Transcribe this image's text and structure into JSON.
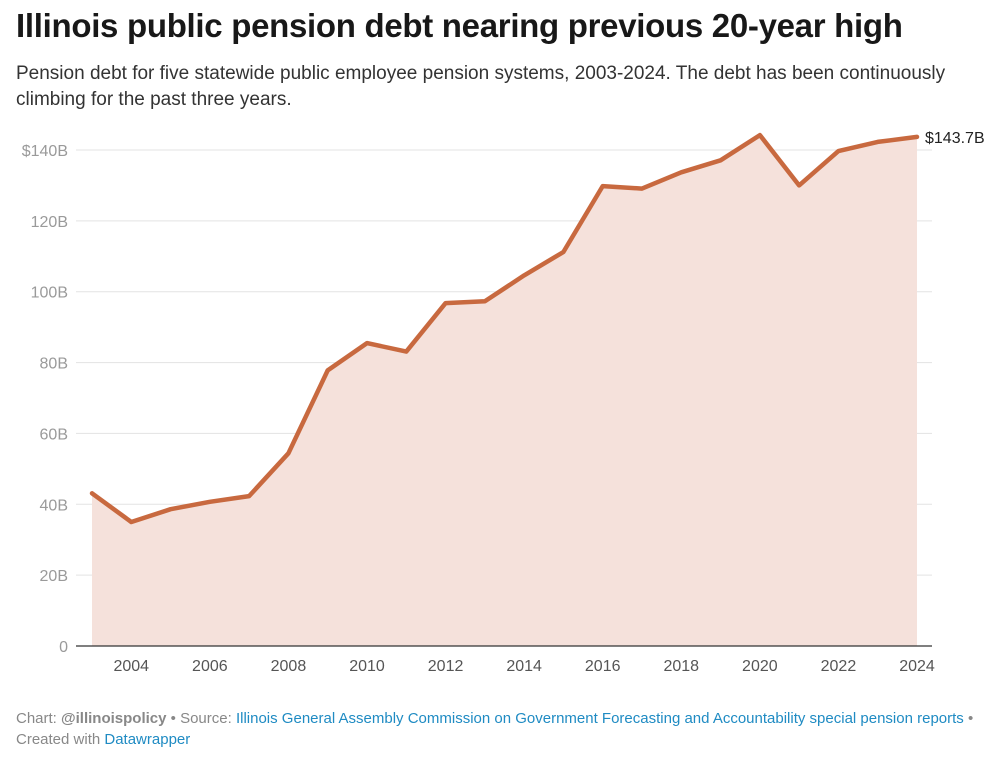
{
  "header": {
    "title": "Illinois public pension debt nearing previous 20-year high",
    "subtitle": "Pension debt for five statewide public employee pension systems, 2003-2024. The debt has been continuously climbing for the past three years."
  },
  "chart_data": {
    "type": "area",
    "title": "Illinois public pension debt nearing previous 20-year high",
    "xlabel": "",
    "ylabel": "",
    "x": [
      2003,
      2004,
      2005,
      2006,
      2007,
      2008,
      2009,
      2010,
      2011,
      2012,
      2013,
      2014,
      2015,
      2016,
      2017,
      2018,
      2019,
      2020,
      2021,
      2022,
      2023,
      2024
    ],
    "series": [
      {
        "name": "Pension debt ($B)",
        "values": [
          43.1,
          35.0,
          38.6,
          40.7,
          42.3,
          54.4,
          77.8,
          85.5,
          83.1,
          96.8,
          97.3,
          104.6,
          111.2,
          129.8,
          129.1,
          133.7,
          137.1,
          144.2,
          130.0,
          139.7,
          142.3,
          143.7
        ]
      }
    ],
    "xlim": [
      2003,
      2024
    ],
    "ylim": [
      0,
      140
    ],
    "x_ticks": [
      2004,
      2006,
      2008,
      2010,
      2012,
      2014,
      2016,
      2018,
      2020,
      2022,
      2024
    ],
    "x_tick_labels": [
      "2004",
      "2006",
      "2008",
      "2010",
      "2012",
      "2014",
      "2016",
      "2018",
      "2020",
      "2022",
      "2024"
    ],
    "y_ticks": [
      0,
      20,
      40,
      60,
      80,
      100,
      120,
      140
    ],
    "y_tick_labels": [
      "0",
      "20B",
      "40B",
      "60B",
      "80B",
      "100B",
      "120B",
      "$140B"
    ],
    "end_label": "$143.7B",
    "grid": true,
    "colors": {
      "line": "#c8693f",
      "area": "#f5e1db",
      "grid": "#e3e3e3",
      "baseline": "#333333"
    }
  },
  "footer": {
    "chart_prefix": "Chart: ",
    "chart_author": "@illinoispolicy",
    "sep1": " • Source: ",
    "source_link": "Illinois General Assembly Commission on Government Forecasting and Accountability special pension reports",
    "sep2": " • Created with ",
    "tool_link": "Datawrapper"
  }
}
